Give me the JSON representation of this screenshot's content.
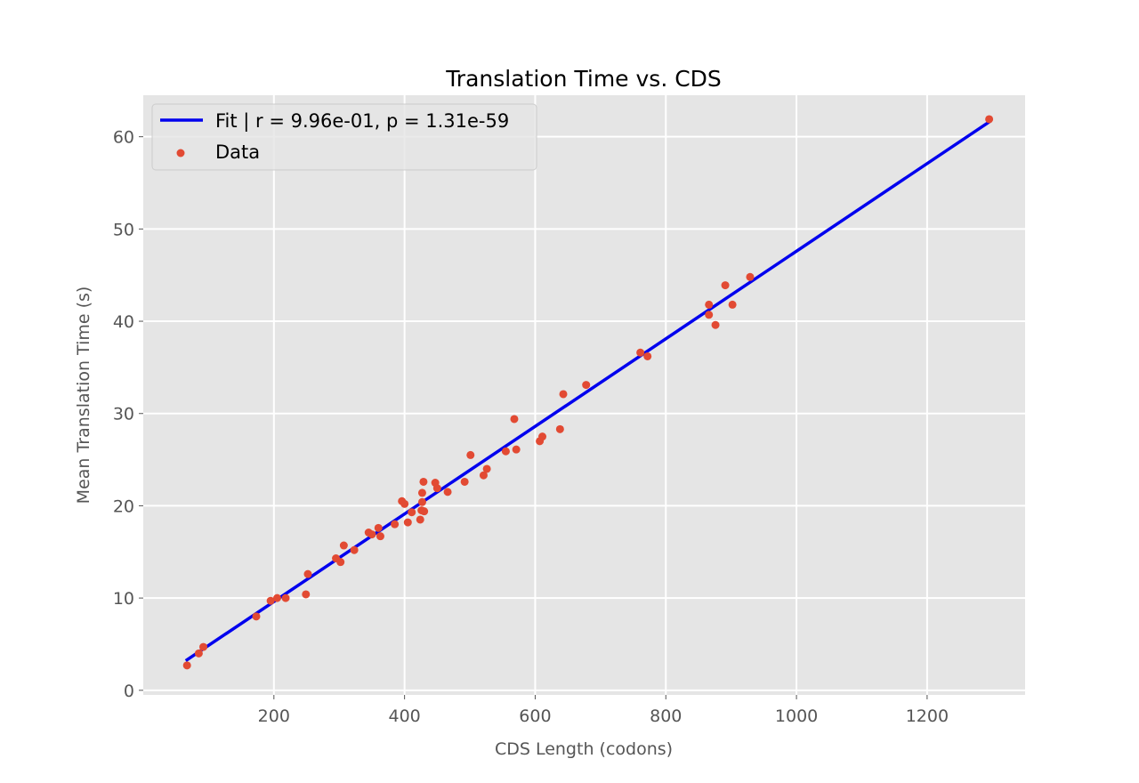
{
  "chart_data": {
    "type": "scatter",
    "title": "Translation Time vs. CDS",
    "xlabel": "CDS Length (codons)",
    "ylabel": "Mean Translation Time (s)",
    "xlim": [
      0,
      1350
    ],
    "ylim": [
      -0.5,
      64.5
    ],
    "xticks": [
      200,
      400,
      600,
      800,
      1000,
      1200
    ],
    "yticks": [
      0,
      10,
      20,
      30,
      40,
      50,
      60
    ],
    "grid": true,
    "legend_position": "top-left",
    "background_color": "#E5E5E5",
    "grid_color": "#FFFFFF",
    "series": [
      {
        "name": "Fit | r = 9.96e-01, p = 1.31e-59",
        "kind": "line",
        "color": "#0000EE",
        "x": [
          67,
          1295
        ],
        "y": [
          3.3,
          61.6
        ]
      },
      {
        "name": "Data",
        "kind": "scatter",
        "color": "#E24A33",
        "points": [
          [
            67,
            2.7
          ],
          [
            85,
            4.0
          ],
          [
            92,
            4.7
          ],
          [
            173,
            8.0
          ],
          [
            195,
            9.7
          ],
          [
            205,
            10.0
          ],
          [
            218,
            10.0
          ],
          [
            249,
            10.4
          ],
          [
            252,
            12.6
          ],
          [
            295,
            14.3
          ],
          [
            302,
            13.9
          ],
          [
            307,
            15.7
          ],
          [
            323,
            15.2
          ],
          [
            345,
            17.1
          ],
          [
            350,
            16.9
          ],
          [
            360,
            17.6
          ],
          [
            363,
            16.7
          ],
          [
            385,
            18.0
          ],
          [
            396,
            20.5
          ],
          [
            400,
            20.2
          ],
          [
            405,
            18.2
          ],
          [
            411,
            19.3
          ],
          [
            424,
            18.5
          ],
          [
            426,
            19.5
          ],
          [
            427,
            20.4
          ],
          [
            427,
            21.4
          ],
          [
            429,
            22.6
          ],
          [
            430,
            19.4
          ],
          [
            447,
            22.5
          ],
          [
            450,
            21.9
          ],
          [
            466,
            21.5
          ],
          [
            492,
            22.6
          ],
          [
            501,
            25.5
          ],
          [
            521,
            23.3
          ],
          [
            526,
            24.0
          ],
          [
            555,
            25.9
          ],
          [
            568,
            29.4
          ],
          [
            571,
            26.1
          ],
          [
            607,
            27.0
          ],
          [
            611,
            27.5
          ],
          [
            638,
            28.3
          ],
          [
            643,
            32.1
          ],
          [
            678,
            33.1
          ],
          [
            761,
            36.6
          ],
          [
            772,
            36.2
          ],
          [
            866,
            40.7
          ],
          [
            866,
            41.8
          ],
          [
            876,
            39.6
          ],
          [
            891,
            43.9
          ],
          [
            902,
            41.8
          ],
          [
            929,
            44.8
          ],
          [
            1295,
            61.9
          ]
        ]
      }
    ]
  }
}
